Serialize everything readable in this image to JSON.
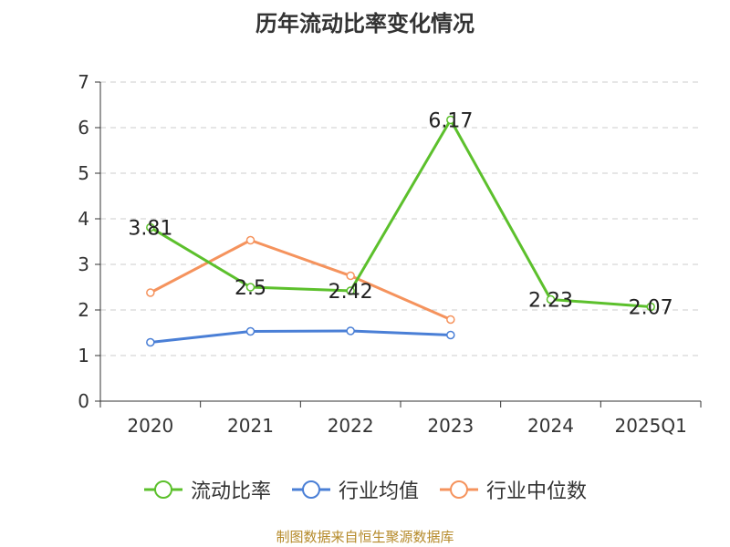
{
  "chart_data": {
    "type": "line",
    "title": "历年流动比率变化情况",
    "categories": [
      "2020",
      "2021",
      "2022",
      "2023",
      "2024",
      "2025Q1"
    ],
    "ylim": [
      0,
      7
    ],
    "yticks": [
      0,
      1,
      2,
      3,
      4,
      5,
      6,
      7
    ],
    "grid": true,
    "legend_position": "bottom",
    "series": [
      {
        "name": "流动比率",
        "color": "#5cc02c",
        "values": [
          3.81,
          2.5,
          2.42,
          6.17,
          2.23,
          2.07
        ],
        "labels": [
          "3.81",
          "2.5",
          "2.42",
          "6.17",
          "2.23",
          "2.07"
        ]
      },
      {
        "name": "行业均值",
        "color": "#4a7fd6",
        "values": [
          1.29,
          1.53,
          1.54,
          1.45,
          null,
          null
        ]
      },
      {
        "name": "行业中位数",
        "color": "#f5935d",
        "values": [
          2.38,
          3.53,
          2.75,
          1.79,
          null,
          null
        ]
      }
    ]
  },
  "footer": "制图数据来自恒生聚源数据库"
}
